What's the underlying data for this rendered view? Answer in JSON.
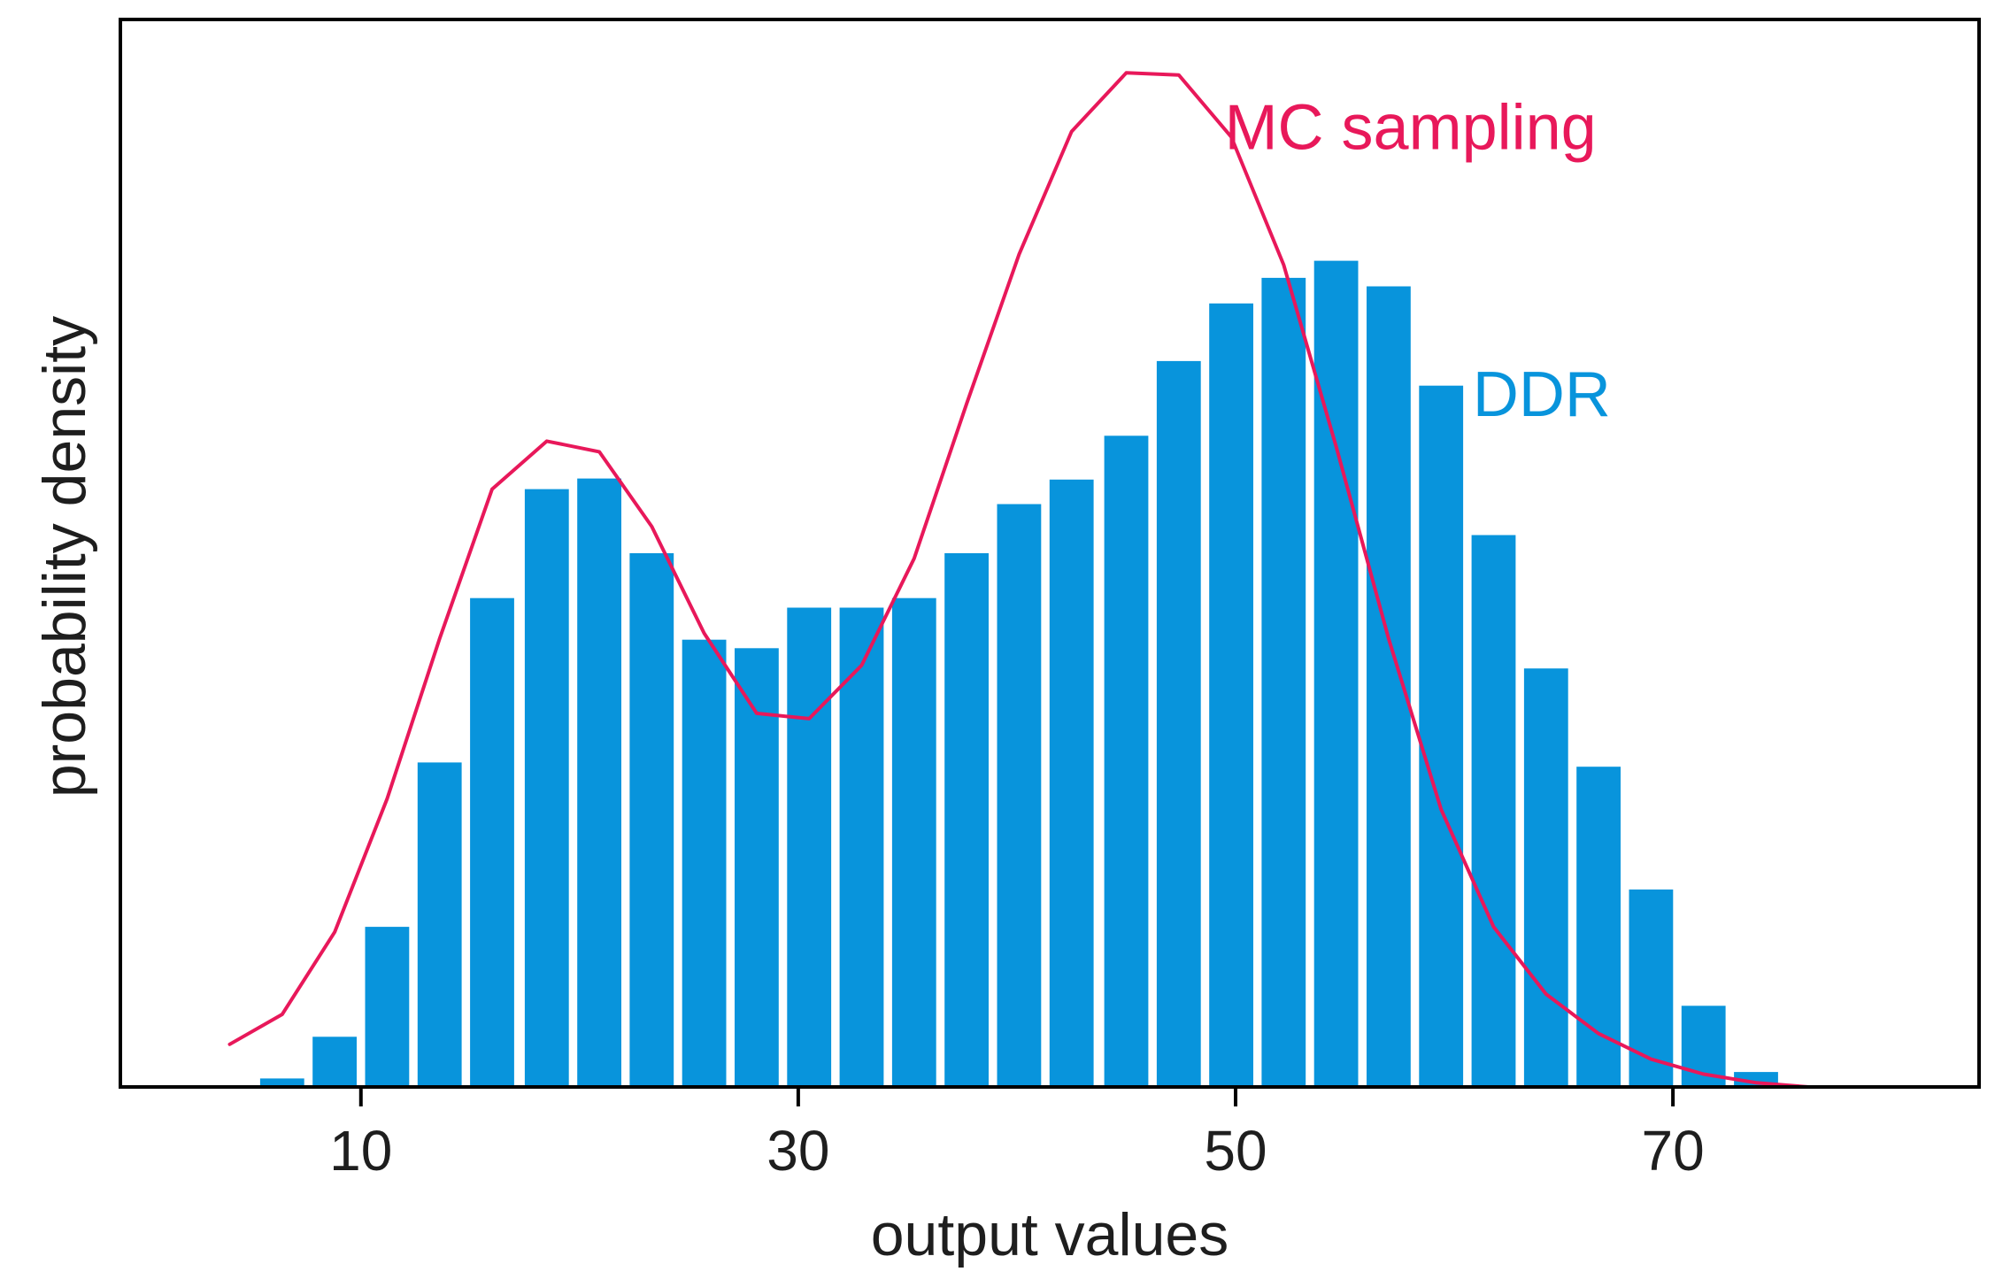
{
  "chart_data": {
    "type": "bar",
    "title": "",
    "xlabel": "output values",
    "ylabel": "probability density",
    "xlim": [
      -1,
      84
    ],
    "ylim": [
      0,
      1
    ],
    "grid": false,
    "x_ticks": [
      10,
      30,
      50,
      70
    ],
    "x_tick_labels": [
      "10",
      "30",
      "50",
      "70"
    ],
    "y_ticks": [],
    "series": [
      {
        "name": "DDR",
        "kind": "bar",
        "color": "#0894dc",
        "bin_width": 2.4,
        "x": [
          6.4,
          8.8,
          11.2,
          13.6,
          16.0,
          18.5,
          20.9,
          23.3,
          25.7,
          28.1,
          30.5,
          32.9,
          35.3,
          37.7,
          40.1,
          42.5,
          45.0,
          47.4,
          49.8,
          52.2,
          54.6,
          57.0,
          59.4,
          61.8,
          64.2,
          66.6,
          69.0,
          71.4,
          73.8
        ],
        "values": [
          0.008,
          0.047,
          0.15,
          0.304,
          0.458,
          0.56,
          0.57,
          0.5,
          0.419,
          0.411,
          0.449,
          0.449,
          0.458,
          0.5,
          0.546,
          0.569,
          0.61,
          0.68,
          0.734,
          0.758,
          0.774,
          0.75,
          0.657,
          0.517,
          0.392,
          0.3,
          0.185,
          0.076,
          0.014
        ]
      },
      {
        "name": "MC sampling",
        "kind": "line",
        "color": "#e8185a",
        "x": [
          4.0,
          6.4,
          8.8,
          11.2,
          13.6,
          16.0,
          18.5,
          20.9,
          23.3,
          25.7,
          28.1,
          30.5,
          32.9,
          35.3,
          37.7,
          40.1,
          42.5,
          45.0,
          47.4,
          49.8,
          52.2,
          54.6,
          57.0,
          59.4,
          61.8,
          64.2,
          66.6,
          69.0,
          71.4,
          73.8,
          76.2
        ],
        "values": [
          0.04,
          0.068,
          0.145,
          0.27,
          0.42,
          0.56,
          0.605,
          0.595,
          0.525,
          0.425,
          0.35,
          0.345,
          0.395,
          0.495,
          0.64,
          0.78,
          0.895,
          0.95,
          0.948,
          0.89,
          0.77,
          0.6,
          0.42,
          0.26,
          0.15,
          0.087,
          0.05,
          0.026,
          0.012,
          0.004,
          0.0
        ]
      }
    ],
    "annotations": [
      {
        "text": "MC sampling",
        "series": "MC sampling",
        "x": 58,
        "y": 0.9
      },
      {
        "text": "DDR",
        "series": "DDR",
        "x": 64,
        "y": 0.65
      }
    ]
  }
}
